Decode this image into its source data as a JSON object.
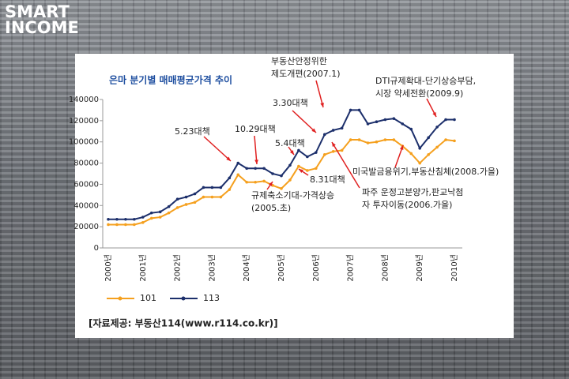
{
  "logo": {
    "line1": "SMART",
    "line2": "INCOME"
  },
  "source": "[자료제공: 부동산114(www.r114.co.kr)]",
  "chart_data": {
    "type": "line",
    "title": "은마 분기별 매매평균가격 추이",
    "categories": [
      "2000년",
      null,
      null,
      null,
      "2001년",
      null,
      null,
      null,
      "2002년",
      null,
      null,
      null,
      "2003년",
      null,
      null,
      null,
      "2004년",
      null,
      null,
      null,
      "2005년",
      null,
      null,
      null,
      "2006년",
      null,
      null,
      null,
      "2007년",
      null,
      null,
      null,
      "2008년",
      null,
      null,
      null,
      "2009년",
      null,
      null,
      null,
      "2010년"
    ],
    "series": [
      {
        "name": "101",
        "color": "#f5a01e",
        "values": [
          22000,
          22000,
          22000,
          22000,
          24000,
          28000,
          29000,
          33000,
          38000,
          41000,
          43000,
          48000,
          48000,
          48000,
          55000,
          69000,
          62000,
          62000,
          63000,
          59000,
          56000,
          64000,
          77000,
          73000,
          75000,
          88000,
          91000,
          92000,
          102000,
          102000,
          99000,
          100000,
          102000,
          102000,
          96000,
          89000,
          80000,
          88000,
          95000,
          102000,
          101000
        ]
      },
      {
        "name": "113",
        "color": "#1c2f6b",
        "values": [
          27000,
          27000,
          27000,
          27000,
          29000,
          33000,
          34000,
          39000,
          46000,
          48000,
          51000,
          57000,
          57000,
          57000,
          66000,
          80000,
          75000,
          75000,
          75000,
          70000,
          68000,
          78000,
          92000,
          86000,
          90000,
          107000,
          111000,
          113000,
          130000,
          130000,
          117000,
          119000,
          121000,
          122000,
          117000,
          112000,
          94000,
          104000,
          114000,
          121000,
          121000
        ]
      }
    ],
    "ylim": [
      0,
      140000
    ],
    "yticks": [
      0,
      20000,
      40000,
      60000,
      80000,
      100000,
      120000,
      140000
    ],
    "grid": false,
    "legend": "bottom-left",
    "annotations": [
      {
        "lines": [
          "부동산안정위한",
          "제도개편(2007.1)"
        ]
      },
      {
        "lines": [
          "DTI규제확대-단기상승부담,",
          "시장 약세전환(2009.9)"
        ]
      },
      {
        "lines": [
          "3.30대책"
        ]
      },
      {
        "lines": [
          "5.23대책"
        ]
      },
      {
        "lines": [
          "10.29대책"
        ]
      },
      {
        "lines": [
          "5.4대책"
        ]
      },
      {
        "lines": [
          "8.31대책"
        ]
      },
      {
        "lines": [
          "규제축소기대-가격상승",
          "(2005.초)"
        ]
      },
      {
        "lines": [
          "미국발금융위기,부동산침체(2008.가을)"
        ]
      },
      {
        "lines": [
          "파주 운정고분양가,판교낙첨",
          "자 투자이동(2006.가을)"
        ]
      }
    ]
  }
}
